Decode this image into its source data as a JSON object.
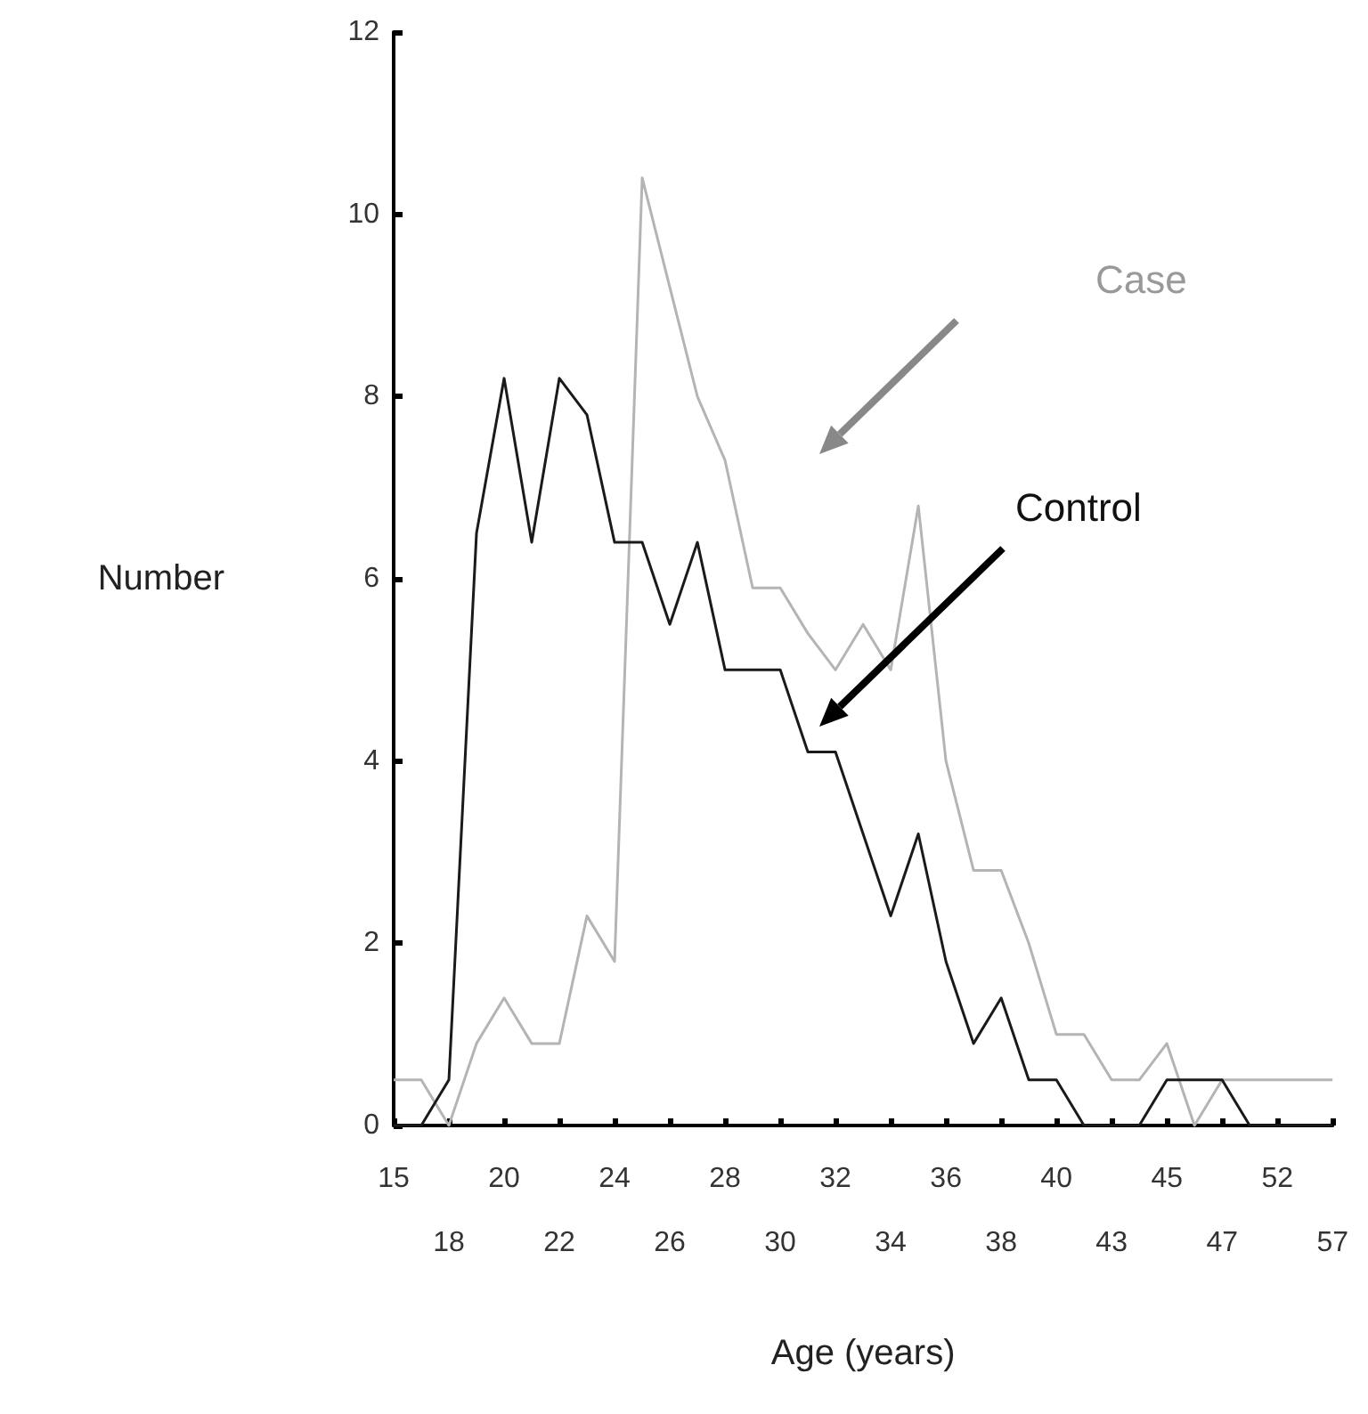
{
  "chart_data": {
    "type": "line",
    "xlabel": "Age (years)",
    "ylabel": "Number",
    "categories": [
      "15",
      null,
      "18",
      null,
      "20",
      null,
      "22",
      null,
      "24",
      null,
      "26",
      null,
      "28",
      null,
      "30",
      null,
      "32",
      null,
      "34",
      null,
      "36",
      null,
      "38",
      null,
      "40",
      null,
      "43",
      null,
      "45",
      null,
      "47",
      null,
      "52",
      null,
      "57"
    ],
    "series": [
      {
        "name": "Case",
        "color": "#b4b4b4",
        "values": [
          0.5,
          0.5,
          0,
          0.9,
          1.4,
          0.9,
          0.9,
          2.3,
          1.8,
          10.4,
          9.2,
          8.0,
          7.3,
          5.9,
          5.9,
          5.4,
          5.0,
          5.5,
          5.0,
          6.8,
          4.0,
          2.8,
          2.8,
          2.0,
          1.0,
          1.0,
          0.5,
          0.5,
          0.9,
          0,
          0.5,
          0.5,
          0.5,
          0.5,
          0.5
        ]
      },
      {
        "name": "Control",
        "color": "#1a1a1a",
        "values": [
          0,
          0,
          0.5,
          6.5,
          8.2,
          6.4,
          8.2,
          7.8,
          6.4,
          6.4,
          5.5,
          6.4,
          5.0,
          5.0,
          5.0,
          4.1,
          4.1,
          3.2,
          2.3,
          3.2,
          1.8,
          0.9,
          1.4,
          0.5,
          0.5,
          0,
          0,
          0,
          0.5,
          0.5,
          0.5,
          0,
          0,
          0,
          0
        ]
      }
    ],
    "ylim": [
      0,
      12
    ],
    "yticks": [
      0,
      2,
      4,
      6,
      8,
      10,
      12
    ],
    "grid": false,
    "marker": "none",
    "line_style": "solid"
  }
}
